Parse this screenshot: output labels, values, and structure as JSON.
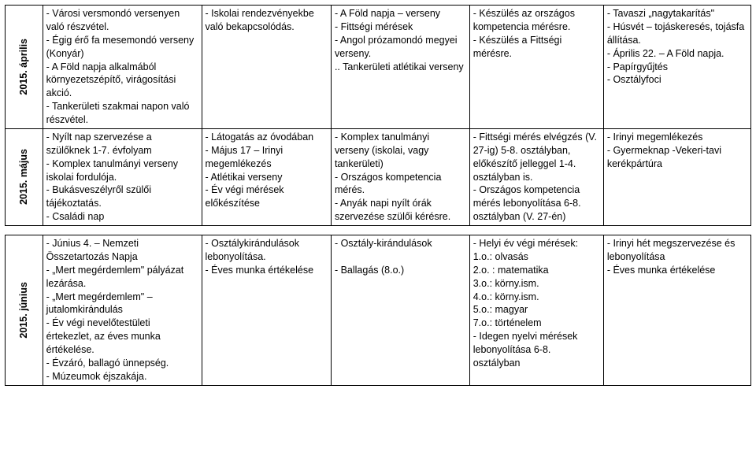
{
  "rows": [
    {
      "month": "2015. április",
      "c1": "- Városi versmondó versenyen való részvétel.\n- Égig érő fa mesemondó verseny (Konyár)\n - A Föld napja alkalmából környezetszépítő, virágosítási akció.\n- Tankerületi szakmai napon való részvétel.",
      "c2": "- Iskolai rendezvényekbe való bekapcsolódás.",
      "c3": "- A Föld napja – verseny\n- Fittségi mérések\n- Angol prózamondó megyei verseny.\n.. Tankerületi atlétikai verseny",
      "c4": "- Készülés az országos kompetencia mérésre.\n- Készülés a  Fittségi mérésre.",
      "c5": "- Tavaszi „nagytakarítás\"\n- Húsvét – tojáskeresés, tojásfa állítása.\n- Április 22. – A Föld napja.\n- Papírgyűjtés\n- Osztályfoci"
    },
    {
      "month": "2015. május",
      "c1": "- Nyílt nap szervezése  a szülőknek 1-7. évfolyam\n- Komplex tanulmányi verseny iskolai fordulója.\n- Bukásveszélyről szülői tájékoztatás.\n- Családi nap",
      "c2": "- Látogatás az óvodában\n- Május 17 – Irinyi megemlékezés\n- Atlétikai verseny\n- Év végi mérések előkészítése",
      "c3": "- Komplex tanulmányi verseny (iskolai, vagy tankerületi)\n- Országos kompetencia mérés.\n- Anyák napi nyílt órák szervezése szülői kérésre.",
      "c4": "- Fittségi mérés elvégzés (V. 27-ig) 5-8. osztályban, előkészítő jelleggel 1-4. osztályban is.\n- Országos kompetencia mérés lebonyolítása 6-8. osztályban  (V. 27-én)",
      "c5": "- Irinyi megemlékezés\n- Gyermeknap  -Vekeri-tavi kerékpártúra"
    },
    {
      "month": "2015. június",
      "c1": "- Június 4. – Nemzeti Összetartozás Napja\n- „Mert megérdemlem\" pályázat lezárása.\n- „Mert megérdemlem\" – jutalomkirándulás\n- Év végi nevelőtestületi értekezlet, az éves munka értékelése.\n- Évzáró, ballagó ünnepség.\n- Múzeumok éjszakája.",
      "c2": "- Osztálykirándulások lebonyolítása.\n- Éves munka értékelése",
      "c3": "- Osztály-kirándulások\n\n- Ballagás (8.o.)",
      "c4": "- Helyi év végi mérések:\n1.o.: olvasás\n2.o. : matematika\n3.o.: körny.ism.\n4.o.: körny.ism.\n5.o.: magyar\n7.o.: történelem\n- Idegen nyelvi mérések lebonyolítása 6-8. osztályban",
      "c5": "- Irinyi hét megszervezése és lebonyolítása\n- Éves munka értékelése"
    }
  ]
}
